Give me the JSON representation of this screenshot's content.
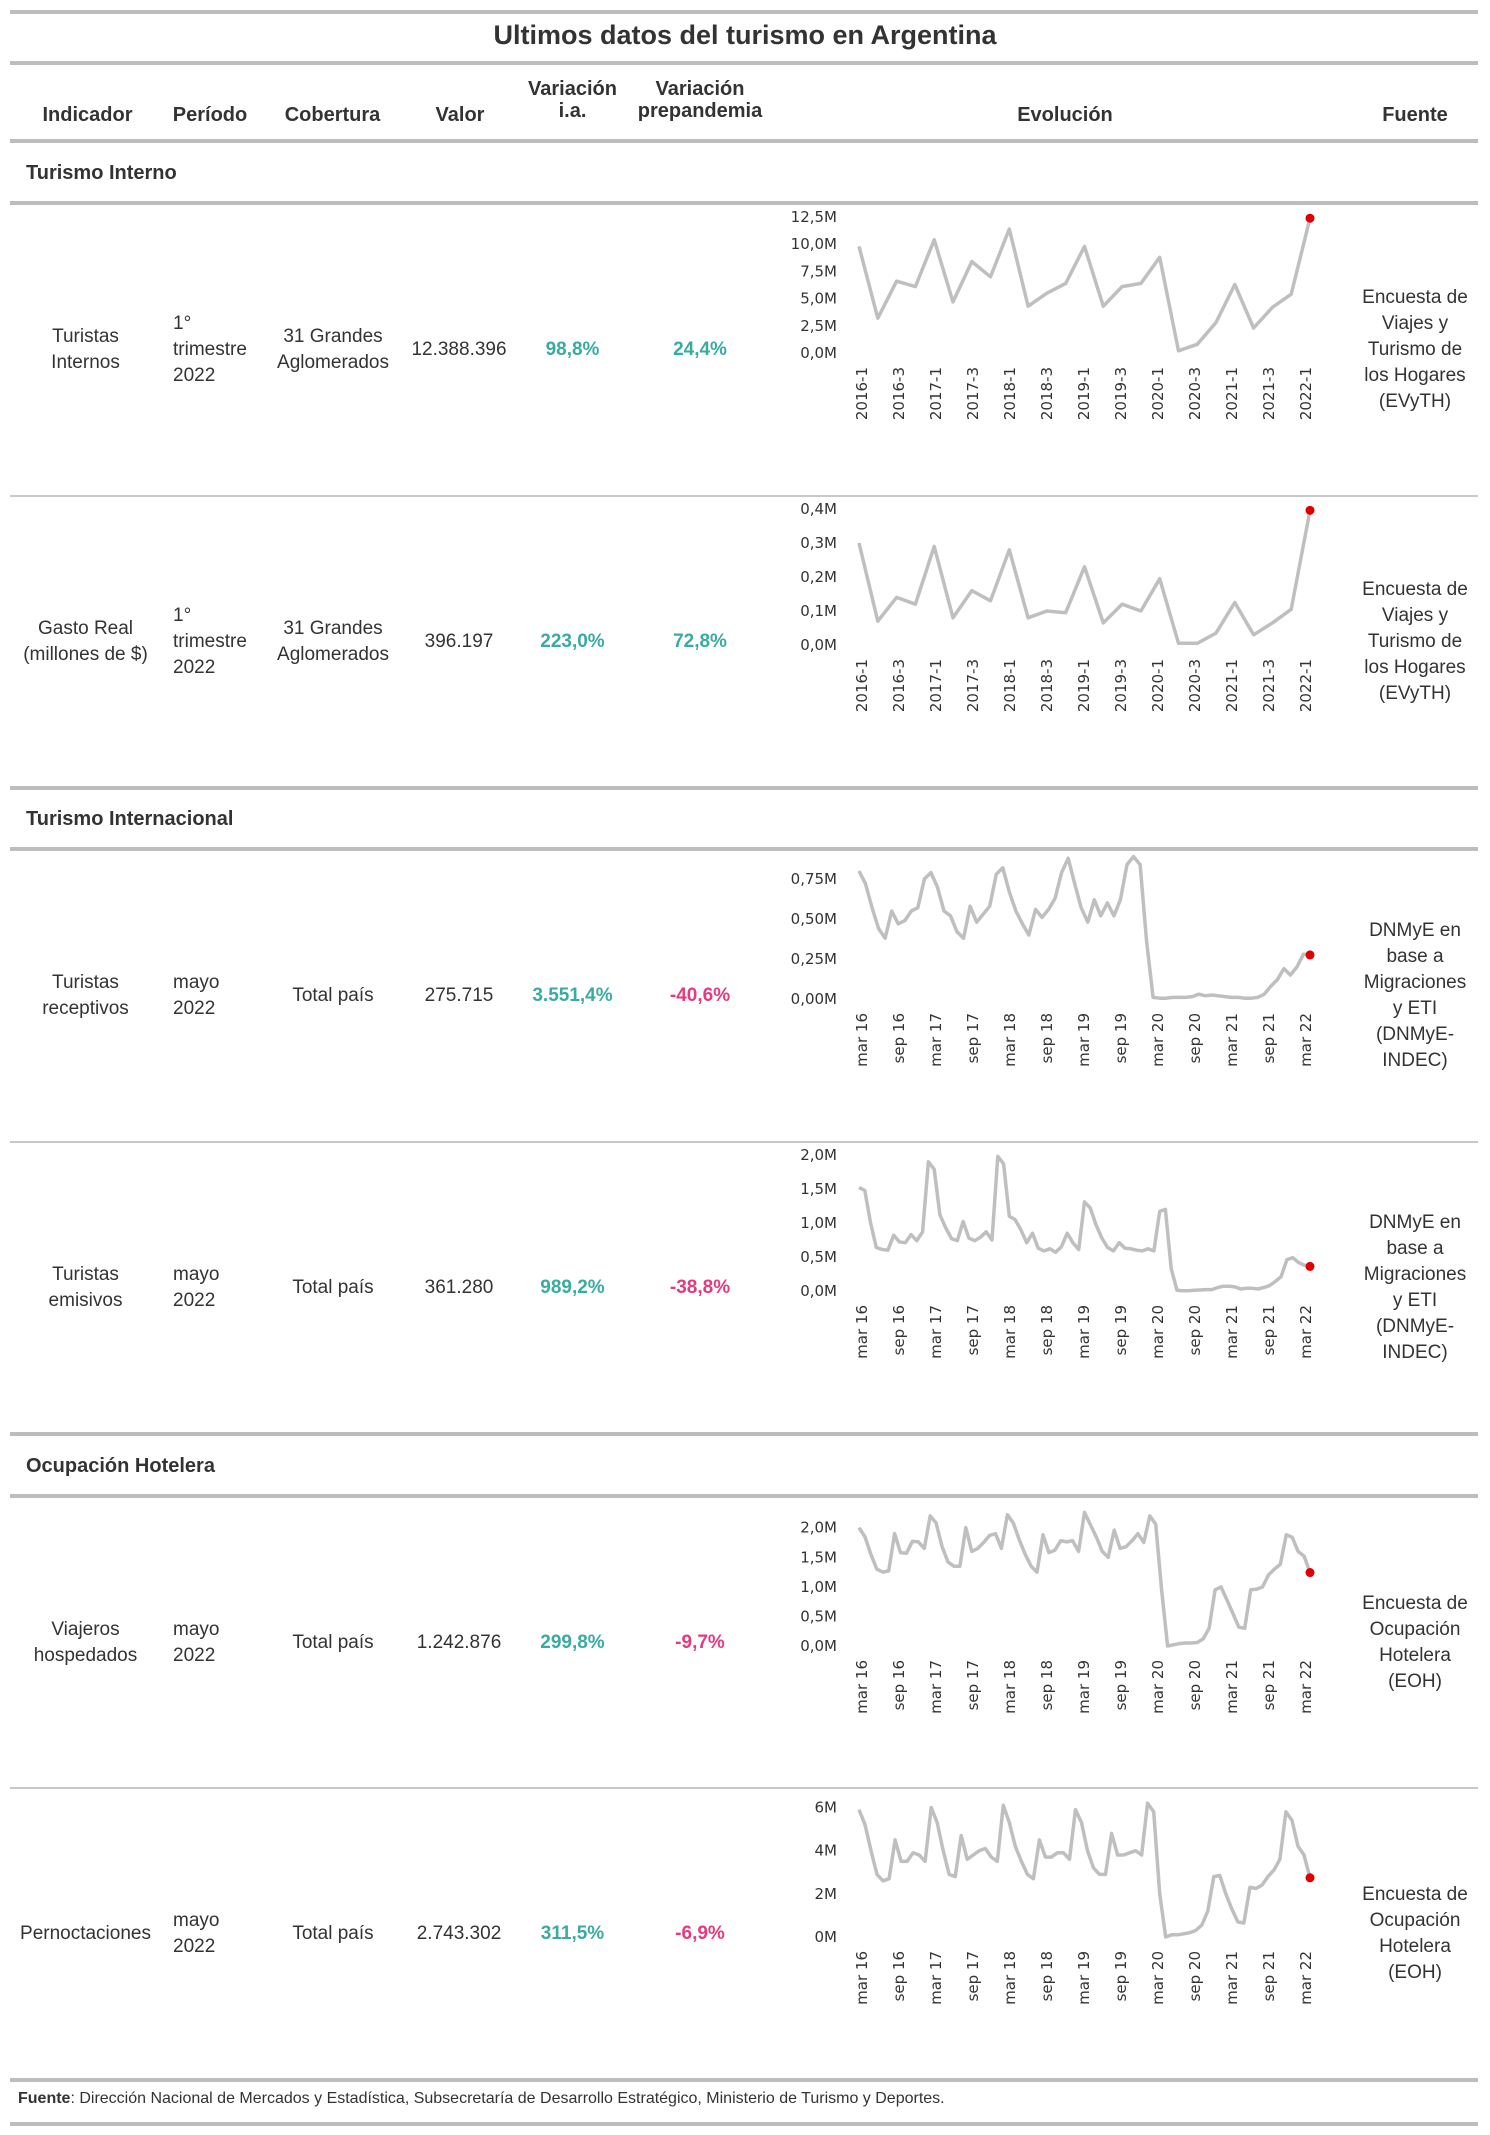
{
  "title": "Ultimos datos del turismo en Argentina",
  "headers": {
    "indicador": "Indicador",
    "periodo": "Período",
    "cobertura": "Cobertura",
    "valor": "Valor",
    "var_ia_1": "Variación",
    "var_ia_2": "i.a.",
    "var_pre_1": "Variación",
    "var_pre_2": "prepandemia",
    "evolucion": "Evolución",
    "fuente": "Fuente"
  },
  "sections": {
    "interno": "Turismo Interno",
    "internacional": "Turismo Internacional",
    "hotelera": "Ocupación Hotelera"
  },
  "rows": [
    {
      "indicador": [
        "Turistas",
        "Internos"
      ],
      "periodo": [
        "1°",
        "trimestre",
        "2022"
      ],
      "cobertura": [
        "31 Grandes",
        "Aglomerados"
      ],
      "valor": "12.388.396",
      "var_ia": "98,8%",
      "var_pre": "24,4%",
      "var_pre_sign": "pos",
      "fuente": [
        "Encuesta de",
        "Viajes y",
        "Turismo de",
        "los Hogares",
        "(EVyTH)"
      ]
    },
    {
      "indicador": [
        "Gasto Real",
        "(millones de $)"
      ],
      "periodo": [
        "1°",
        "trimestre",
        "2022"
      ],
      "cobertura": [
        "31 Grandes",
        "Aglomerados"
      ],
      "valor": "396.197",
      "var_ia": "223,0%",
      "var_pre": "72,8%",
      "var_pre_sign": "pos",
      "fuente": [
        "Encuesta de",
        "Viajes y",
        "Turismo de",
        "los Hogares",
        "(EVyTH)"
      ]
    },
    {
      "indicador": [
        "Turistas",
        "receptivos"
      ],
      "periodo": [
        "mayo",
        "2022"
      ],
      "cobertura": [
        "Total país"
      ],
      "valor": "275.715",
      "var_ia": "3.551,4%",
      "var_pre": "-40,6%",
      "var_pre_sign": "neg",
      "fuente": [
        "DNMyE en",
        "base a",
        "Migraciones",
        "y ETI",
        "(DNMyE-",
        "INDEC)"
      ]
    },
    {
      "indicador": [
        "Turistas",
        "emisivos"
      ],
      "periodo": [
        "mayo",
        "2022"
      ],
      "cobertura": [
        "Total país"
      ],
      "valor": "361.280",
      "var_ia": "989,2%",
      "var_pre": "-38,8%",
      "var_pre_sign": "neg",
      "fuente": [
        "DNMyE en",
        "base a",
        "Migraciones",
        "y ETI",
        "(DNMyE-",
        "INDEC)"
      ]
    },
    {
      "indicador": [
        "Viajeros",
        "hospedados"
      ],
      "periodo": [
        "mayo",
        "2022"
      ],
      "cobertura": [
        "Total país"
      ],
      "valor": "1.242.876",
      "var_ia": "299,8%",
      "var_pre": "-9,7%",
      "var_pre_sign": "neg",
      "fuente": [
        "Encuesta de",
        "Ocupación",
        "Hotelera",
        "(EOH)"
      ]
    },
    {
      "indicador": [
        "Pernoctaciones"
      ],
      "periodo": [
        "mayo",
        "2022"
      ],
      "cobertura": [
        "Total país"
      ],
      "valor": "2.743.302",
      "var_ia": "311,5%",
      "var_pre": "-6,9%",
      "var_pre_sign": "neg",
      "fuente": [
        "Encuesta de",
        "Ocupación",
        "Hotelera",
        "(EOH)"
      ]
    }
  ],
  "footer": {
    "label": "Fuente",
    "text": ": Dirección Nacional de Mercados y Estadística, Subsecretaría de Desarrollo Estratégico, Ministerio de Turismo y Deportes."
  },
  "colors": {
    "line": "#bfbfbf",
    "last_point": "#e00000",
    "positive": "#3aaba0",
    "negative": "#e53a7f"
  },
  "chart_data": [
    {
      "type": "line",
      "row": 0,
      "x_ticks": [
        "2016-1",
        "2016-3",
        "2017-1",
        "2017-3",
        "2018-1",
        "2018-3",
        "2019-1",
        "2019-3",
        "2020-1",
        "2020-3",
        "2021-1",
        "2021-3",
        "2022-1"
      ],
      "y_ticks": [
        "0,0M",
        "2,5M",
        "5,0M",
        "7,5M",
        "10,0M",
        "12,5M"
      ],
      "ylim": [
        0,
        12.5
      ],
      "values": [
        9.8,
        3.2,
        6.6,
        6.1,
        10.4,
        4.7,
        8.4,
        7.0,
        11.4,
        4.3,
        5.5,
        6.4,
        9.8,
        4.3,
        6.1,
        6.4,
        8.8,
        0.2,
        0.8,
        2.8,
        6.3,
        2.3,
        4.2,
        5.4,
        12.39
      ]
    },
    {
      "type": "line",
      "row": 1,
      "x_ticks": [
        "2016-1",
        "2016-3",
        "2017-1",
        "2017-3",
        "2018-1",
        "2018-3",
        "2019-1",
        "2019-3",
        "2020-1",
        "2020-3",
        "2021-1",
        "2021-3",
        "2022-1"
      ],
      "y_ticks": [
        "0,0M",
        "0,1M",
        "0,2M",
        "0,3M",
        "0,4M"
      ],
      "ylim": [
        0,
        0.4
      ],
      "values": [
        0.3,
        0.07,
        0.14,
        0.12,
        0.29,
        0.08,
        0.16,
        0.13,
        0.28,
        0.08,
        0.1,
        0.095,
        0.23,
        0.065,
        0.12,
        0.1,
        0.195,
        0.005,
        0.005,
        0.035,
        0.125,
        0.03,
        0.065,
        0.105,
        0.396
      ]
    },
    {
      "type": "line",
      "row": 2,
      "x_ticks": [
        "mar 16",
        "sep 16",
        "mar 17",
        "sep 17",
        "mar 18",
        "sep 18",
        "mar 19",
        "sep 19",
        "mar 20",
        "sep 20",
        "mar 21",
        "sep 21",
        "mar 22"
      ],
      "y_ticks": [
        "0,00M",
        "0,25M",
        "0,50M",
        "0,75M"
      ],
      "ylim": [
        0,
        0.85
      ],
      "values": [
        0.8,
        0.72,
        0.57,
        0.44,
        0.38,
        0.55,
        0.47,
        0.49,
        0.55,
        0.57,
        0.75,
        0.79,
        0.7,
        0.55,
        0.52,
        0.42,
        0.38,
        0.58,
        0.48,
        0.53,
        0.58,
        0.78,
        0.82,
        0.67,
        0.55,
        0.47,
        0.4,
        0.56,
        0.51,
        0.56,
        0.63,
        0.79,
        0.88,
        0.72,
        0.57,
        0.48,
        0.62,
        0.52,
        0.6,
        0.52,
        0.62,
        0.84,
        0.89,
        0.84,
        0.36,
        0.01,
        0.005,
        0.005,
        0.01,
        0.01,
        0.01,
        0.015,
        0.03,
        0.02,
        0.025,
        0.02,
        0.015,
        0.01,
        0.01,
        0.005,
        0.005,
        0.01,
        0.03,
        0.08,
        0.12,
        0.19,
        0.15,
        0.2,
        0.28,
        0.2757
      ]
    },
    {
      "type": "line",
      "row": 3,
      "x_ticks": [
        "mar 16",
        "sep 16",
        "mar 17",
        "sep 17",
        "mar 18",
        "sep 18",
        "mar 19",
        "sep 19",
        "mar 20",
        "sep 20",
        "mar 21",
        "sep 21",
        "mar 22"
      ],
      "y_ticks": [
        "0,0M",
        "0,5M",
        "1,0M",
        "1,5M",
        "2,0M"
      ],
      "ylim": [
        0,
        2.0
      ],
      "values": [
        1.52,
        1.48,
        1.0,
        0.64,
        0.61,
        0.6,
        0.82,
        0.72,
        0.71,
        0.83,
        0.74,
        0.87,
        1.9,
        1.79,
        1.12,
        0.93,
        0.77,
        0.74,
        1.02,
        0.78,
        0.74,
        0.79,
        0.87,
        0.75,
        1.98,
        1.87,
        1.1,
        1.05,
        0.9,
        0.71,
        0.85,
        0.63,
        0.59,
        0.62,
        0.57,
        0.65,
        0.85,
        0.71,
        0.61,
        1.31,
        1.22,
        0.97,
        0.78,
        0.64,
        0.59,
        0.71,
        0.63,
        0.62,
        0.6,
        0.59,
        0.62,
        0.59,
        1.17,
        1.2,
        0.33,
        0.01,
        0.005,
        0.005,
        0.01,
        0.015,
        0.02,
        0.02,
        0.05,
        0.07,
        0.07,
        0.06,
        0.03,
        0.04,
        0.04,
        0.03,
        0.05,
        0.08,
        0.14,
        0.21,
        0.46,
        0.49,
        0.42,
        0.38,
        0.3613
      ]
    },
    {
      "type": "line",
      "row": 4,
      "x_ticks": [
        "mar 16",
        "sep 16",
        "mar 17",
        "sep 17",
        "mar 18",
        "sep 18",
        "mar 19",
        "sep 19",
        "mar 20",
        "sep 20",
        "mar 21",
        "sep 21",
        "mar 22"
      ],
      "y_ticks": [
        "0,0M",
        "0,5M",
        "1,0M",
        "1,5M",
        "2,0M"
      ],
      "ylim": [
        0,
        2.3
      ],
      "values": [
        2.0,
        1.85,
        1.55,
        1.3,
        1.25,
        1.27,
        1.9,
        1.58,
        1.57,
        1.77,
        1.76,
        1.65,
        2.2,
        2.08,
        1.68,
        1.42,
        1.35,
        1.35,
        2.0,
        1.6,
        1.65,
        1.75,
        1.87,
        1.9,
        1.65,
        2.22,
        2.08,
        1.8,
        1.55,
        1.35,
        1.25,
        1.88,
        1.58,
        1.62,
        1.78,
        1.76,
        1.78,
        1.6,
        2.26,
        2.05,
        1.84,
        1.6,
        1.5,
        1.96,
        1.65,
        1.68,
        1.78,
        1.9,
        1.75,
        2.2,
        2.06,
        0.95,
        0.0,
        0.02,
        0.04,
        0.05,
        0.05,
        0.06,
        0.12,
        0.3,
        0.95,
        1.0,
        0.78,
        0.55,
        0.32,
        0.3,
        0.95,
        0.96,
        1.0,
        1.2,
        1.3,
        1.38,
        1.88,
        1.84,
        1.6,
        1.52,
        1.2429
      ]
    },
    {
      "type": "line",
      "row": 5,
      "x_ticks": [
        "mar 16",
        "sep 16",
        "mar 17",
        "sep 17",
        "mar 18",
        "sep 18",
        "mar 19",
        "sep 19",
        "mar 20",
        "sep 20",
        "mar 21",
        "sep 21",
        "mar 22"
      ],
      "y_ticks": [
        "0M",
        "2M",
        "4M",
        "6M"
      ],
      "ylim": [
        0,
        6.3
      ],
      "values": [
        5.9,
        5.2,
        4.0,
        2.9,
        2.6,
        2.7,
        4.5,
        3.5,
        3.5,
        3.9,
        3.8,
        3.5,
        6.0,
        5.3,
        4.0,
        2.9,
        2.8,
        4.7,
        3.6,
        3.8,
        4.0,
        4.1,
        3.7,
        3.5,
        6.1,
        5.3,
        4.2,
        3.5,
        2.9,
        2.7,
        4.5,
        3.7,
        3.7,
        3.9,
        3.9,
        3.6,
        5.9,
        5.3,
        4.0,
        3.2,
        2.9,
        2.9,
        4.8,
        3.8,
        3.8,
        3.9,
        4.0,
        3.8,
        6.2,
        5.8,
        2.0,
        0.0,
        0.1,
        0.1,
        0.15,
        0.2,
        0.3,
        0.55,
        1.2,
        2.8,
        2.85,
        2.0,
        1.3,
        0.7,
        0.65,
        2.3,
        2.25,
        2.4,
        2.8,
        3.1,
        3.6,
        5.8,
        5.4,
        4.2,
        3.8,
        2.7433
      ]
    }
  ]
}
